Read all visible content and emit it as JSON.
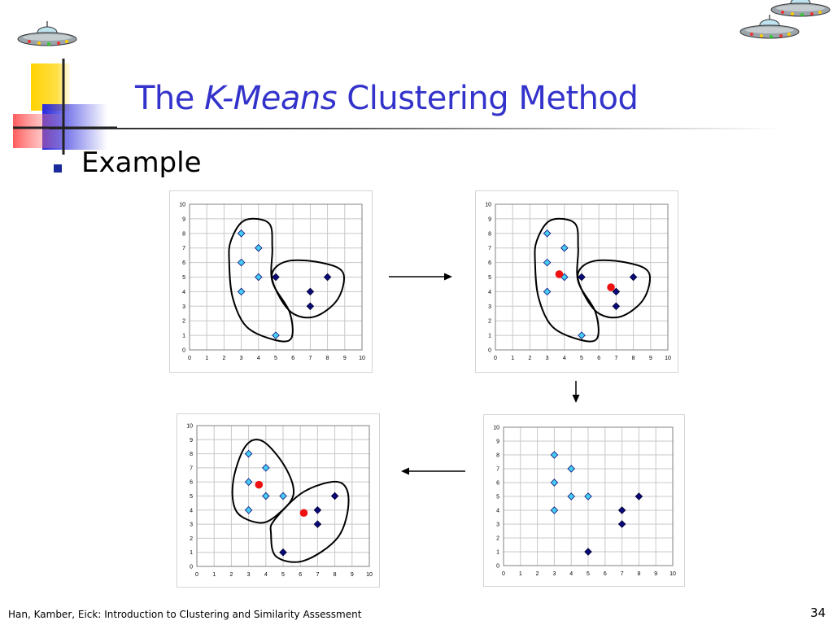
{
  "slide": {
    "title_pre": "The ",
    "title_em": "K-Means",
    "title_post": " Clustering Method",
    "bullet": "Example",
    "footer": "Han, Kamber, Eick: Introduction to Clustering and Similarity Assessment",
    "page_number": "34"
  },
  "colors": {
    "title": "#3333cc",
    "light_points": "#44ccf2",
    "dark_points": "#0a0a78",
    "centroids": "#ee1111"
  },
  "chart_data": [
    {
      "type": "scatter",
      "panel": "top-left",
      "xlim": [
        0,
        10
      ],
      "ylim": [
        0,
        10
      ],
      "x_ticks": [
        "0",
        "1",
        "2",
        "3",
        "4",
        "5",
        "6",
        "7",
        "8",
        "9",
        "10"
      ],
      "y_ticks": [
        "0",
        "1",
        "2",
        "3",
        "4",
        "5",
        "6",
        "7",
        "8",
        "9",
        "10"
      ],
      "grid": true,
      "series": [
        {
          "marker": "diamond",
          "color": "light",
          "points": [
            [
              3,
              8
            ],
            [
              4,
              7
            ],
            [
              3,
              6
            ],
            [
              4,
              5
            ],
            [
              3,
              4
            ],
            [
              5,
              1
            ]
          ]
        },
        {
          "marker": "diamond",
          "color": "dark",
          "points": [
            [
              5,
              5
            ],
            [
              8,
              5
            ],
            [
              7,
              4
            ],
            [
              7,
              3
            ]
          ]
        }
      ],
      "centroids": [],
      "clusters": [
        [
          [
            2.4,
            7.5
          ],
          [
            3.2,
            8.9
          ],
          [
            4.6,
            8.7
          ],
          [
            4.8,
            7.0
          ],
          [
            4.8,
            4.7
          ],
          [
            5.8,
            2.6
          ],
          [
            5.9,
            0.8
          ],
          [
            4.9,
            0.7
          ],
          [
            3.3,
            1.6
          ],
          [
            2.5,
            3.6
          ],
          [
            2.3,
            6.0
          ]
        ],
        [
          [
            4.8,
            5.3
          ],
          [
            5.7,
            6.1
          ],
          [
            7.6,
            6.0
          ],
          [
            8.9,
            5.3
          ],
          [
            8.6,
            3.5
          ],
          [
            7.3,
            2.3
          ],
          [
            6.0,
            2.5
          ],
          [
            5.1,
            3.9
          ]
        ]
      ]
    },
    {
      "type": "scatter",
      "panel": "top-right",
      "xlim": [
        0,
        10
      ],
      "ylim": [
        0,
        10
      ],
      "x_ticks": [
        "0",
        "1",
        "2",
        "3",
        "4",
        "5",
        "6",
        "7",
        "8",
        "9",
        "10"
      ],
      "y_ticks": [
        "0",
        "1",
        "2",
        "3",
        "4",
        "5",
        "6",
        "7",
        "8",
        "9",
        "10"
      ],
      "grid": true,
      "series": [
        {
          "marker": "diamond",
          "color": "light",
          "points": [
            [
              3,
              8
            ],
            [
              4,
              7
            ],
            [
              3,
              6
            ],
            [
              4,
              5
            ],
            [
              3,
              4
            ],
            [
              5,
              1
            ]
          ]
        },
        {
          "marker": "diamond",
          "color": "dark",
          "points": [
            [
              5,
              5
            ],
            [
              8,
              5
            ],
            [
              7,
              4
            ],
            [
              7,
              3
            ]
          ]
        }
      ],
      "centroids": [
        [
          3.7,
          5.2
        ],
        [
          6.7,
          4.3
        ]
      ],
      "clusters": [
        [
          [
            2.4,
            7.5
          ],
          [
            3.2,
            8.9
          ],
          [
            4.6,
            8.7
          ],
          [
            4.8,
            7.0
          ],
          [
            4.8,
            4.7
          ],
          [
            5.8,
            2.6
          ],
          [
            5.9,
            0.8
          ],
          [
            4.9,
            0.7
          ],
          [
            3.3,
            1.6
          ],
          [
            2.5,
            3.6
          ],
          [
            2.3,
            6.0
          ]
        ],
        [
          [
            4.8,
            5.3
          ],
          [
            5.7,
            6.1
          ],
          [
            7.6,
            6.0
          ],
          [
            8.9,
            5.3
          ],
          [
            8.6,
            3.5
          ],
          [
            7.3,
            2.3
          ],
          [
            6.0,
            2.5
          ],
          [
            5.1,
            3.9
          ]
        ]
      ]
    },
    {
      "type": "scatter",
      "panel": "bottom-right",
      "xlim": [
        0,
        10
      ],
      "ylim": [
        0,
        10
      ],
      "x_ticks": [
        "0",
        "1",
        "2",
        "3",
        "4",
        "5",
        "6",
        "7",
        "8",
        "9",
        "10"
      ],
      "y_ticks": [
        "0",
        "1",
        "2",
        "3",
        "4",
        "5",
        "6",
        "7",
        "8",
        "9",
        "10"
      ],
      "grid": true,
      "series": [
        {
          "marker": "diamond",
          "color": "light",
          "points": [
            [
              3,
              8
            ],
            [
              4,
              7
            ],
            [
              3,
              6
            ],
            [
              4,
              5
            ],
            [
              5,
              5
            ],
            [
              3,
              4
            ]
          ]
        },
        {
          "marker": "diamond",
          "color": "dark",
          "points": [
            [
              8,
              5
            ],
            [
              7,
              4
            ],
            [
              7,
              3
            ],
            [
              5,
              1
            ]
          ]
        }
      ],
      "centroids": [],
      "clusters": []
    },
    {
      "type": "scatter",
      "panel": "bottom-left",
      "xlim": [
        0,
        10
      ],
      "ylim": [
        0,
        10
      ],
      "x_ticks": [
        "0",
        "1",
        "2",
        "3",
        "4",
        "5",
        "6",
        "7",
        "8",
        "9",
        "10"
      ],
      "y_ticks": [
        "0",
        "1",
        "2",
        "3",
        "4",
        "5",
        "6",
        "7",
        "8",
        "9",
        "10"
      ],
      "grid": true,
      "series": [
        {
          "marker": "diamond",
          "color": "light",
          "points": [
            [
              3,
              8
            ],
            [
              4,
              7
            ],
            [
              3,
              6
            ],
            [
              4,
              5
            ],
            [
              5,
              5
            ],
            [
              3,
              4
            ]
          ]
        },
        {
          "marker": "diamond",
          "color": "dark",
          "points": [
            [
              8,
              5
            ],
            [
              7,
              4
            ],
            [
              7,
              3
            ],
            [
              5,
              1
            ]
          ]
        }
      ],
      "centroids": [
        [
          3.6,
          5.8
        ],
        [
          6.2,
          3.8
        ]
      ],
      "clusters": [
        [
          [
            2.1,
            6.0
          ],
          [
            2.8,
            8.5
          ],
          [
            3.8,
            8.9
          ],
          [
            5.1,
            7.1
          ],
          [
            5.6,
            5.1
          ],
          [
            4.6,
            3.6
          ],
          [
            3.6,
            3.1
          ],
          [
            2.3,
            3.9
          ]
        ],
        [
          [
            4.5,
            3.3
          ],
          [
            6.2,
            5.3
          ],
          [
            8.2,
            6.0
          ],
          [
            8.8,
            4.7
          ],
          [
            8.2,
            2.1
          ],
          [
            6.2,
            0.4
          ],
          [
            4.6,
            0.7
          ],
          [
            4.3,
            2.3
          ]
        ]
      ]
    }
  ]
}
